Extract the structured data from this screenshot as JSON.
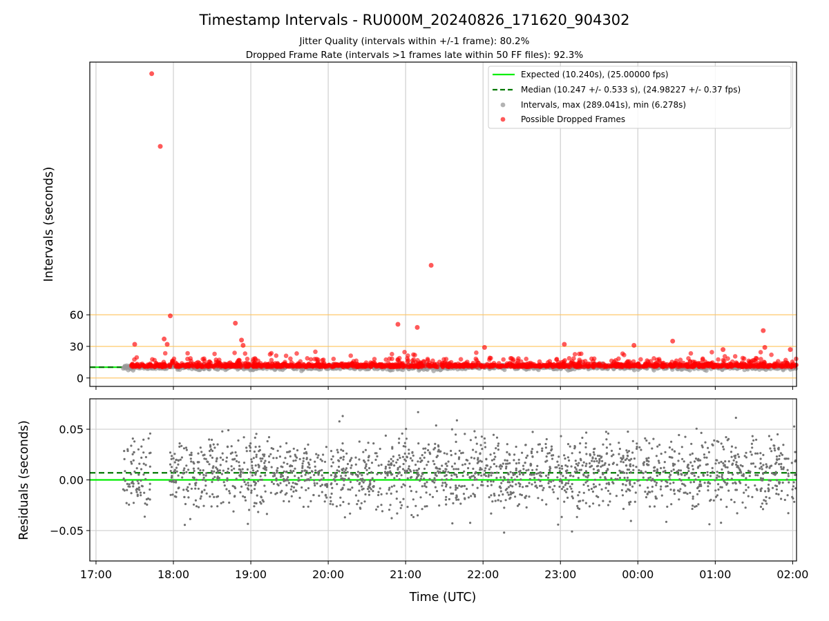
{
  "chart_data": [
    {
      "type": "scatter",
      "title": "Timestamp Intervals - RU000M_20240826_171620_904302",
      "subtitle_lines": [
        "Jitter Quality (intervals within +/-1 frame): 80.2%",
        "Dropped Frame Rate (intervals >1 frames late within 50 FF files): 92.3%"
      ],
      "xlabel": "",
      "ylabel": "Intervals (seconds)",
      "x_range_hours": [
        16.92,
        26.05
      ],
      "ylim": [
        -8,
        300
      ],
      "yticks": [
        0,
        30,
        60
      ],
      "reference_lines": [
        0,
        30,
        60
      ],
      "grid": "vertical",
      "legend": {
        "position": "top-right",
        "entries": [
          {
            "label": "Expected (10.240s), (25.00000 fps)",
            "style": "solid-line",
            "color": "#00ee00"
          },
          {
            "label": "Median (10.247 +/- 0.533 s), (24.98227 +/- 0.37 fps)",
            "style": "dashed-line",
            "color": "#007700"
          },
          {
            "label": "Intervals, max (289.041s), min (6.278s)",
            "style": "dot",
            "color": "#999999"
          },
          {
            "label": "Possible Dropped Frames",
            "style": "dot",
            "color": "#ff0000"
          }
        ]
      },
      "expected_interval": 10.24,
      "median_interval": 10.247,
      "dropped_frame_outliers": [
        {
          "x": 17.5,
          "y": 32
        },
        {
          "x": 17.72,
          "y": 289
        },
        {
          "x": 17.83,
          "y": 220
        },
        {
          "x": 17.88,
          "y": 37
        },
        {
          "x": 17.92,
          "y": 32
        },
        {
          "x": 17.96,
          "y": 59
        },
        {
          "x": 18.8,
          "y": 52
        },
        {
          "x": 18.88,
          "y": 36
        },
        {
          "x": 18.9,
          "y": 31
        },
        {
          "x": 20.9,
          "y": 51
        },
        {
          "x": 21.15,
          "y": 48
        },
        {
          "x": 21.33,
          "y": 107
        },
        {
          "x": 22.02,
          "y": 29
        },
        {
          "x": 23.05,
          "y": 32
        },
        {
          "x": 23.95,
          "y": 31
        },
        {
          "x": 24.45,
          "y": 35
        },
        {
          "x": 25.1,
          "y": 27
        },
        {
          "x": 25.62,
          "y": 45
        },
        {
          "x": 25.64,
          "y": 29
        },
        {
          "x": 25.97,
          "y": 27
        }
      ],
      "colors": {
        "expected": "#00ee00",
        "median": "#007700",
        "intervals": "#999999",
        "dropped": "#ff0000",
        "reference": "#ffc35a"
      }
    },
    {
      "type": "scatter",
      "xlabel": "Time (UTC)",
      "ylabel": "Residuals (seconds)",
      "x_range_hours": [
        16.92,
        26.05
      ],
      "ylim": [
        -0.08,
        0.08
      ],
      "yticks": [
        -0.05,
        0.0,
        0.05
      ],
      "ytick_labels": [
        "−0.05",
        "0.00",
        "0.05"
      ],
      "xtick_hours": [
        17,
        18,
        19,
        20,
        21,
        22,
        23,
        24,
        25,
        26
      ],
      "xtick_labels": [
        "17:00",
        "18:00",
        "19:00",
        "20:00",
        "21:00",
        "22:00",
        "23:00",
        "00:00",
        "01:00",
        "02:00"
      ],
      "grid": "both",
      "expected_residual": 0.0,
      "median_residual": 0.007,
      "residual_spread_sd": 0.018,
      "data_start_hour": 17.35,
      "data_end_hour": 26.05,
      "colors": {
        "points": "#707070",
        "expected": "#00ee00",
        "median": "#007700"
      }
    }
  ]
}
